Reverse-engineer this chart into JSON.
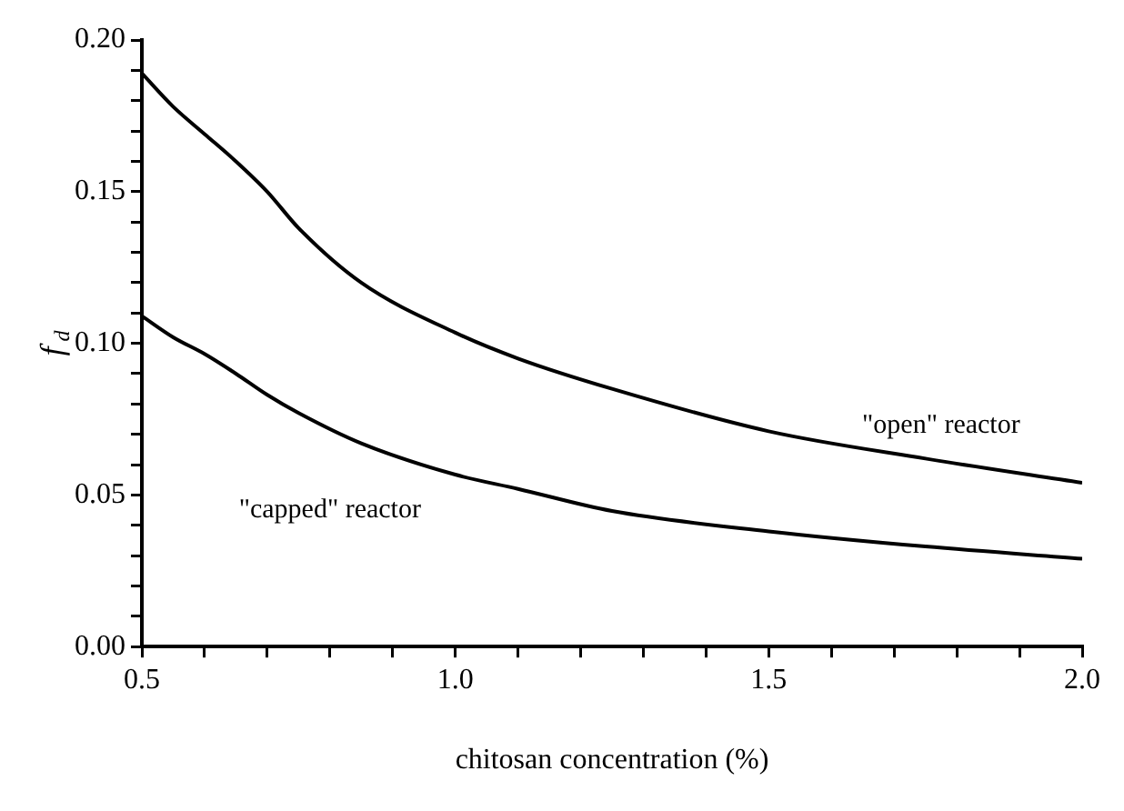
{
  "chart_data": {
    "type": "line",
    "xlabel": "chitosan concentration (%)",
    "ylabel": "f$_{d}$",
    "x": [
      0.5,
      0.55,
      0.6,
      0.65,
      0.7,
      0.75,
      0.85,
      1.0,
      1.1,
      1.25,
      1.5,
      1.75,
      2.0
    ],
    "series": [
      {
        "color": "#000000",
        "values": [
          0.189,
          0.178,
          0.169,
          0.16,
          0.15,
          0.138,
          0.12,
          0.1035,
          0.095,
          0.085,
          0.071,
          0.062,
          0.054
        ]
      },
      {
        "color": "#000000",
        "values": [
          0.109,
          0.102,
          0.0965,
          0.09,
          0.083,
          0.077,
          0.067,
          0.0567,
          0.052,
          0.0447,
          0.038,
          0.033,
          0.029
        ]
      }
    ],
    "xlim": [
      0.5,
      2.0
    ],
    "xticks": [
      0.5,
      {
        "value": 0.6,
        "label": null
      },
      {
        "value": 0.7,
        "label": null
      },
      {
        "value": 0.8,
        "label": null
      },
      {
        "value": 0.9,
        "label": null
      },
      {
        "value": 1.0,
        "label": "1.0"
      },
      {
        "value": 1.1,
        "label": null
      },
      {
        "value": 1.2,
        "label": null
      },
      {
        "value": 1.3,
        "label": null
      },
      {
        "value": 1.4,
        "label": null
      },
      1.5,
      {
        "value": 1.6,
        "label": null
      },
      {
        "value": 1.7,
        "label": null
      },
      {
        "value": 1.8,
        "label": null
      },
      {
        "value": 1.9,
        "label": null
      },
      {
        "value": 2.0,
        "label": "2.0"
      }
    ],
    "ylim": [
      0,
      0.2
    ],
    "yticks": [
      {
        "value": 0,
        "label": "0.00"
      },
      {
        "value": 0.01,
        "label": null
      },
      {
        "value": 0.02,
        "label": null
      },
      {
        "value": 0.03,
        "label": null
      },
      {
        "value": 0.04,
        "label": null
      },
      0.05,
      {
        "value": 0.06,
        "label": null
      },
      {
        "value": 0.07,
        "label": null
      },
      {
        "value": 0.08,
        "label": null
      },
      {
        "value": 0.09,
        "label": null
      },
      {
        "value": 0.1,
        "label": "0.10"
      },
      {
        "value": 0.11,
        "label": null
      },
      {
        "value": 0.12,
        "label": null
      },
      {
        "value": 0.13,
        "label": null
      },
      {
        "value": 0.14,
        "label": null
      },
      0.15,
      {
        "value": 0.16,
        "label": null
      },
      {
        "value": 0.17,
        "label": null
      },
      {
        "value": 0.18,
        "label": null
      },
      {
        "value": 0.19,
        "label": null
      },
      {
        "value": 0.2,
        "label": "0.20"
      }
    ],
    "annotations": [
      "\"open\" reactor",
      "\"capped\" reactor"
    ],
    "grid": false,
    "legend": false,
    "marker": "none",
    "line_style": "solid"
  }
}
